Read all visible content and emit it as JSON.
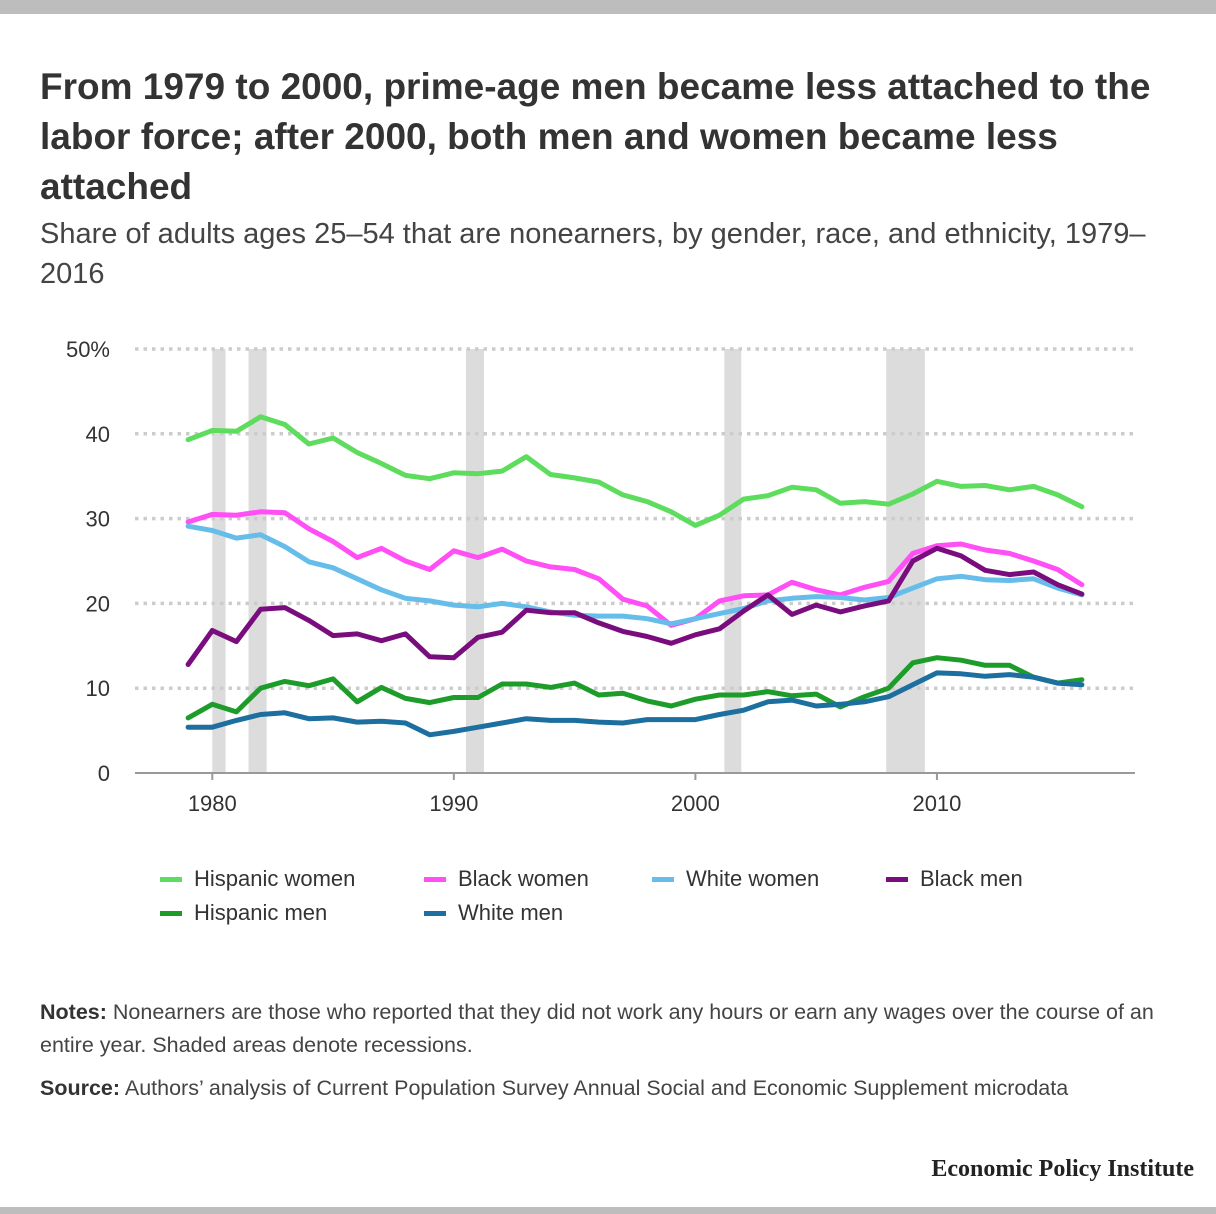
{
  "title": "From 1979 to 2000, prime-age men became less attached to the labor force; after 2000, both men and women became less attached",
  "subtitle": "Share of adults ages 25–54 that are nonearners, by gender, race, and ethnicity, 1979–2016",
  "notes": {
    "label": "Notes:",
    "text": " Nonearners are those who reported that they did not work any hours or earn any wages over the course of an entire year. Shaded areas denote recessions."
  },
  "source": {
    "label": "Source:",
    "text": " Authors’ analysis of Current Population Survey Annual Social and Economic Supplement microdata"
  },
  "brand": "Economic Policy Institute",
  "chart_data": {
    "type": "line",
    "title": "",
    "xlabel": "",
    "ylabel": "",
    "xlim": [
      1976.8,
      2018.2
    ],
    "ylim": [
      0,
      50
    ],
    "x_ticks": [
      1980,
      1990,
      2000,
      2010
    ],
    "y_ticks": [
      {
        "value": 0,
        "label": "0"
      },
      {
        "value": 10,
        "label": "10"
      },
      {
        "value": 20,
        "label": "20"
      },
      {
        "value": 30,
        "label": "30"
      },
      {
        "value": 40,
        "label": "40"
      },
      {
        "value": 50,
        "label": "50%"
      }
    ],
    "grid": "horizontal dotted",
    "legend_position": "bottom",
    "recessions": [
      [
        1980,
        1980.55
      ],
      [
        1981.5,
        1982.25
      ],
      [
        1990.5,
        1991.25
      ],
      [
        2001.2,
        2001.9
      ],
      [
        2007.9,
        2009.5
      ]
    ],
    "x": [
      1979,
      1980,
      1981,
      1982,
      1983,
      1984,
      1985,
      1986,
      1987,
      1988,
      1989,
      1990,
      1991,
      1992,
      1993,
      1994,
      1995,
      1996,
      1997,
      1998,
      1999,
      2000,
      2001,
      2002,
      2003,
      2004,
      2005,
      2006,
      2007,
      2008,
      2009,
      2010,
      2011,
      2012,
      2013,
      2014,
      2015,
      2016
    ],
    "series": [
      {
        "name": "Hispanic women",
        "color": "#5ddc5d",
        "values": [
          39.3,
          40.4,
          40.3,
          42,
          41.1,
          38.8,
          39.5,
          37.8,
          36.5,
          35.1,
          34.7,
          35.4,
          35.3,
          35.6,
          37.3,
          35.2,
          34.8,
          34.3,
          32.8,
          32,
          30.8,
          29.2,
          30.4,
          32.3,
          32.7,
          33.7,
          33.4,
          31.8,
          32,
          31.7,
          32.9,
          34.4,
          33.8,
          33.9,
          33.4,
          33.8,
          32.8,
          31.4
        ]
      },
      {
        "name": "Black women",
        "color": "#ff4ff5",
        "values": [
          29.6,
          30.5,
          30.4,
          30.8,
          30.7,
          28.8,
          27.3,
          25.4,
          26.5,
          25,
          24,
          26.2,
          25.4,
          26.4,
          25,
          24.3,
          24,
          22.9,
          20.5,
          19.7,
          17.4,
          18.2,
          20.3,
          20.9,
          21,
          22.5,
          21.6,
          21,
          21.9,
          22.6,
          25.9,
          26.8,
          27,
          26.3,
          25.9,
          25,
          24,
          22.2
        ]
      },
      {
        "name": "White women",
        "color": "#66bde9",
        "values": [
          29.1,
          28.6,
          27.7,
          28.1,
          26.7,
          24.9,
          24.2,
          22.9,
          21.6,
          20.6,
          20.3,
          19.8,
          19.6,
          20,
          19.6,
          19,
          18.6,
          18.5,
          18.5,
          18.2,
          17.6,
          18.2,
          18.8,
          19.4,
          20.3,
          20.6,
          20.8,
          20.7,
          20.4,
          20.7,
          21.8,
          22.9,
          23.2,
          22.8,
          22.7,
          22.9,
          21.8,
          21
        ]
      },
      {
        "name": "Black men",
        "color": "#7a0d7e",
        "values": [
          12.8,
          16.8,
          15.5,
          19.3,
          19.5,
          18,
          16.2,
          16.4,
          15.6,
          16.4,
          13.7,
          13.6,
          16,
          16.6,
          19.2,
          18.9,
          18.9,
          17.7,
          16.7,
          16.1,
          15.3,
          16.3,
          17,
          19.1,
          21,
          18.7,
          19.8,
          19,
          19.7,
          20.3,
          25,
          26.5,
          25.6,
          23.9,
          23.4,
          23.7,
          22.2,
          21.1
        ]
      },
      {
        "name": "Hispanic men",
        "color": "#1e9c2a",
        "values": [
          6.5,
          8.1,
          7.2,
          10,
          10.8,
          10.3,
          11.1,
          8.4,
          10.1,
          8.8,
          8.3,
          8.9,
          8.9,
          10.5,
          10.5,
          10.1,
          10.6,
          9.2,
          9.4,
          8.5,
          7.9,
          8.7,
          9.2,
          9.2,
          9.6,
          9.1,
          9.3,
          7.8,
          9,
          10,
          13,
          13.6,
          13.3,
          12.7,
          12.7,
          11.3,
          10.6,
          11
        ]
      },
      {
        "name": "White men",
        "color": "#1c6f9e",
        "values": [
          5.4,
          5.4,
          6.2,
          6.9,
          7.1,
          6.4,
          6.5,
          6,
          6.1,
          5.9,
          4.5,
          4.9,
          5.4,
          5.9,
          6.4,
          6.2,
          6.2,
          6,
          5.9,
          6.3,
          6.3,
          6.3,
          6.9,
          7.4,
          8.4,
          8.6,
          7.9,
          8.1,
          8.4,
          9,
          10.4,
          11.8,
          11.7,
          11.4,
          11.6,
          11.3,
          10.6,
          10.4
        ]
      }
    ]
  }
}
